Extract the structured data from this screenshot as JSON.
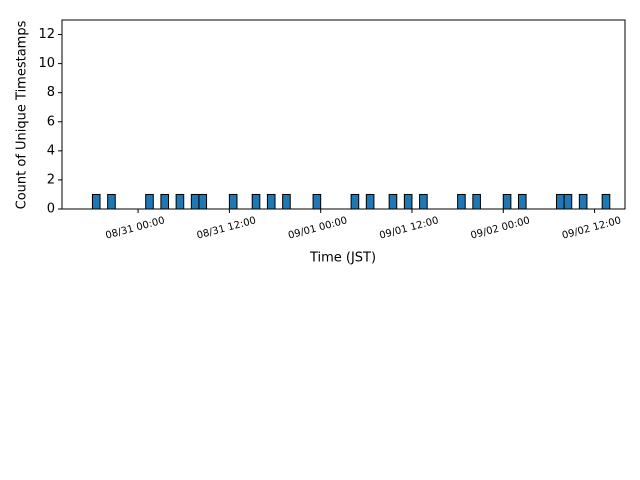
{
  "chart_data": {
    "type": "bar",
    "x": [
      "08/30 18:00",
      "08/30 20:00",
      "08/31 01:00",
      "08/31 03:00",
      "08/31 05:00",
      "08/31 07:00",
      "08/31 08:00",
      "08/31 12:00",
      "08/31 15:00",
      "08/31 17:00",
      "08/31 19:00",
      "08/31 23:00",
      "09/01 04:00",
      "09/01 06:00",
      "09/01 09:00",
      "09/01 11:00",
      "09/01 13:00",
      "09/01 18:00",
      "09/01 20:00",
      "09/02 00:00",
      "09/02 02:00",
      "09/02 07:00",
      "09/02 08:00",
      "09/02 10:00",
      "09/02 13:00"
    ],
    "values": [
      1,
      1,
      1,
      1,
      1,
      1,
      1,
      1,
      1,
      1,
      1,
      1,
      1,
      1,
      1,
      1,
      1,
      1,
      1,
      1,
      1,
      1,
      1,
      1,
      1
    ],
    "color": "#1f77b4",
    "edgecolor": "#000000",
    "xlabel": "Time (JST)",
    "ylabel": "Count of Unique Timestamps",
    "xlim": [
      "08/30 14:00",
      "09/02 16:00"
    ],
    "xticks": [
      "08/31 00:00",
      "08/31 12:00",
      "09/01 00:00",
      "09/01 12:00",
      "09/02 00:00",
      "09/02 12:00"
    ],
    "ylim": [
      0,
      13
    ],
    "yticks": [
      0,
      2,
      4,
      6,
      8,
      10,
      12
    ],
    "grid": false
  }
}
